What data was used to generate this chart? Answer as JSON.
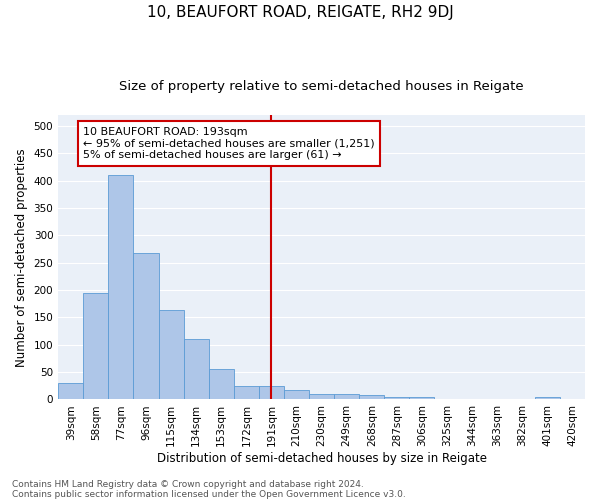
{
  "title": "10, BEAUFORT ROAD, REIGATE, RH2 9DJ",
  "subtitle": "Size of property relative to semi-detached houses in Reigate",
  "xlabel": "Distribution of semi-detached houses by size in Reigate",
  "ylabel": "Number of semi-detached properties",
  "bar_labels": [
    "39sqm",
    "58sqm",
    "77sqm",
    "96sqm",
    "115sqm",
    "134sqm",
    "153sqm",
    "172sqm",
    "191sqm",
    "210sqm",
    "230sqm",
    "249sqm",
    "268sqm",
    "287sqm",
    "306sqm",
    "325sqm",
    "344sqm",
    "363sqm",
    "382sqm",
    "401sqm",
    "420sqm"
  ],
  "bar_values": [
    30,
    195,
    410,
    268,
    163,
    110,
    55,
    24,
    24,
    18,
    10,
    10,
    8,
    4,
    4,
    0,
    0,
    0,
    0,
    5,
    0
  ],
  "bar_color": "#aec6e8",
  "bar_edge_color": "#5b9bd5",
  "vline_x_index": 8,
  "vline_color": "#cc0000",
  "annotation_text": "10 BEAUFORT ROAD: 193sqm\n← 95% of semi-detached houses are smaller (1,251)\n5% of semi-detached houses are larger (61) →",
  "annotation_box_color": "#ffffff",
  "annotation_box_edge": "#cc0000",
  "footer_text": "Contains HM Land Registry data © Crown copyright and database right 2024.\nContains public sector information licensed under the Open Government Licence v3.0.",
  "ylim": [
    0,
    520
  ],
  "yticks": [
    0,
    50,
    100,
    150,
    200,
    250,
    300,
    350,
    400,
    450,
    500
  ],
  "fig_facecolor": "#ffffff",
  "ax_facecolor": "#eaf0f8",
  "grid_color": "#ffffff",
  "title_fontsize": 11,
  "subtitle_fontsize": 9.5,
  "tick_fontsize": 7.5,
  "ylabel_fontsize": 8.5,
  "xlabel_fontsize": 8.5,
  "footer_fontsize": 6.5,
  "annot_fontsize": 8
}
